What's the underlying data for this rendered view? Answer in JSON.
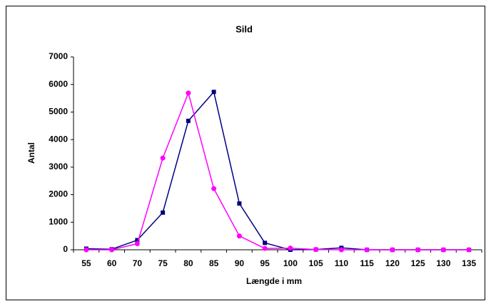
{
  "chart_data": {
    "type": "line",
    "title": "Sild",
    "x_label": "Længde i mm",
    "y_label": "Antal",
    "categories": [
      "55",
      "60",
      "70",
      "75",
      "80",
      "85",
      "90",
      "95",
      "100",
      "105",
      "110",
      "115",
      "120",
      "125",
      "130",
      "135"
    ],
    "series": [
      {
        "color": "#000080",
        "marker": "square",
        "values": [
          40,
          20,
          350,
          1350,
          4680,
          5730,
          1680,
          250,
          0,
          10,
          70,
          0,
          0,
          0,
          0,
          0
        ]
      },
      {
        "color": "#ff00ff",
        "marker": "circle",
        "values": [
          0,
          0,
          220,
          3330,
          5690,
          2220,
          500,
          50,
          60,
          10,
          0,
          0,
          0,
          0,
          0,
          0
        ]
      }
    ],
    "ylim": [
      0,
      7000
    ],
    "yticks": [
      0,
      1000,
      2000,
      3000,
      4000,
      5000,
      6000,
      7000
    ],
    "grid": false
  }
}
